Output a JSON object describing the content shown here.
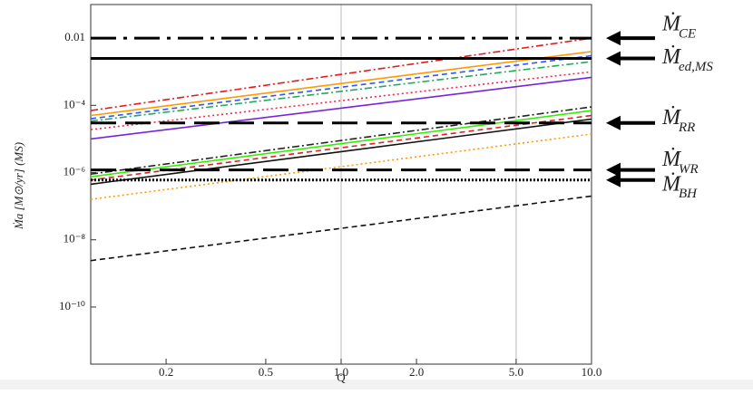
{
  "chart_data": {
    "type": "line",
    "x_label": "Q",
    "y_label": "Ṁa [M⊙/yr] (MS)",
    "x_log": true,
    "y_log": true,
    "xlim": [
      0.1,
      10
    ],
    "ylim": [
      2e-12,
      0.1
    ],
    "xticks": [
      0.2,
      0.5,
      {
        "value": 1,
        "label": "1.0"
      },
      {
        "value": 2,
        "label": "2.0"
      },
      {
        "value": 5,
        "label": "5.0"
      },
      {
        "value": 10,
        "label": "10.0"
      }
    ],
    "yticks": [
      0.01,
      {
        "value": 0.0001,
        "label": "10⁻⁴"
      },
      {
        "value": 1e-06,
        "label": "10⁻⁶"
      },
      {
        "value": 1e-08,
        "label": "10⁻⁸"
      },
      {
        "value": 1e-10,
        "label": "10⁻¹⁰"
      }
    ],
    "grid_x": [
      1,
      5
    ],
    "x": [
      0.1,
      10
    ],
    "series": [
      {
        "color": "#e41a1c",
        "style": "dashdot",
        "values": [
          7e-05,
          0.01
        ]
      },
      {
        "color": "#ff9900",
        "style": "solid",
        "values": [
          5e-05,
          0.004
        ]
      },
      {
        "color": "#3355ff",
        "style": "dashed",
        "values": [
          4e-05,
          0.003
        ]
      },
      {
        "color": "#22aa55",
        "style": "dashdot",
        "values": [
          3.4e-05,
          0.002
        ]
      },
      {
        "color": "#ff2244",
        "style": "dotted",
        "values": [
          1.9e-05,
          0.001
        ]
      },
      {
        "color": "#7722dd",
        "style": "solid",
        "values": [
          1e-05,
          0.00068
        ]
      },
      {
        "color": "#222222",
        "style": "dashdot",
        "values": [
          9e-07,
          9e-05
        ]
      },
      {
        "color": "#33ee00",
        "style": "solid",
        "values": [
          7.5e-07,
          7e-05
        ]
      },
      {
        "color": "#dd2222",
        "style": "dashed",
        "values": [
          6e-07,
          5e-05
        ]
      },
      {
        "color": "#111111",
        "style": "solid",
        "values": [
          4.5e-07,
          3.9e-05
        ]
      },
      {
        "color": "#ff9900",
        "style": "dotted",
        "values": [
          1.6e-07,
          1.4e-05
        ]
      },
      {
        "color": "#111111",
        "style": "dashed",
        "values": [
          2.4e-09,
          2e-07
        ]
      }
    ],
    "levels": [
      {
        "symbol": "Ṁ",
        "sub": "CE",
        "style": "longdashdot",
        "values": [
          0.01,
          0.01
        ]
      },
      {
        "symbol": "Ṁ",
        "sub": "ed,MS",
        "style": "solid",
        "values": [
          0.0025,
          0.0025
        ]
      },
      {
        "symbol": "Ṁ",
        "sub": "RR",
        "style": "longdash",
        "values": [
          3e-05,
          3e-05
        ]
      },
      {
        "symbol": "Ṁ",
        "sub": "WR",
        "style": "longdash",
        "values": [
          1.2e-06,
          1.2e-06
        ]
      },
      {
        "symbol": "Ṁ",
        "sub": "BH",
        "style": "densedot",
        "values": [
          6e-07,
          6e-07
        ]
      }
    ]
  }
}
